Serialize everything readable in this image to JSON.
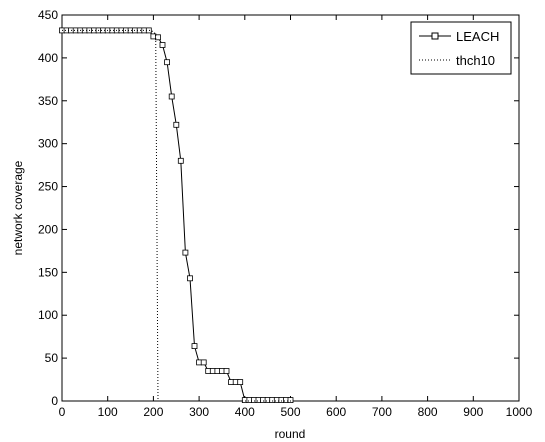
{
  "chart_data": {
    "type": "line",
    "title": "",
    "xlabel": "round",
    "ylabel": "network coverage",
    "xlim": [
      0,
      1000
    ],
    "ylim": [
      0,
      450
    ],
    "xticks": [
      0,
      100,
      200,
      300,
      400,
      500,
      600,
      700,
      800,
      900,
      1000
    ],
    "yticks": [
      0,
      50,
      100,
      150,
      200,
      250,
      300,
      350,
      400,
      450
    ],
    "grid": false,
    "legend": {
      "placement": "top-right",
      "entries": [
        "LEACH",
        "thch10"
      ]
    },
    "series": [
      {
        "name": "LEACH",
        "style": "solid",
        "marker": "square",
        "color": "#000000",
        "x": [
          0,
          10,
          20,
          30,
          40,
          50,
          60,
          70,
          80,
          90,
          100,
          110,
          120,
          130,
          140,
          150,
          160,
          170,
          180,
          190,
          200,
          210,
          220,
          230,
          240,
          250,
          260,
          270,
          280,
          290,
          300,
          310,
          320,
          330,
          340,
          350,
          360,
          370,
          380,
          390,
          400,
          410,
          420,
          430,
          440,
          450,
          460,
          470,
          480,
          490,
          500
        ],
        "y": [
          432,
          432,
          432,
          432,
          432,
          432,
          432,
          432,
          432,
          432,
          432,
          432,
          432,
          432,
          432,
          432,
          432,
          432,
          432,
          432,
          425,
          424,
          415,
          395,
          355,
          322,
          280,
          173,
          143,
          64,
          45,
          45,
          35,
          35,
          35,
          35,
          35,
          22,
          22,
          22,
          1,
          1,
          1,
          1,
          1,
          1,
          1,
          1,
          1,
          1,
          1
        ]
      },
      {
        "name": "thch10",
        "style": "dotted",
        "marker": "none",
        "color": "#000000",
        "x": [
          0,
          20,
          40,
          60,
          80,
          100,
          120,
          140,
          160,
          180,
          195,
          205,
          210,
          500,
          550,
          600,
          650,
          700,
          750,
          800,
          850,
          900,
          950,
          1000
        ],
        "y": [
          432,
          432,
          432,
          432,
          432,
          432,
          432,
          432,
          432,
          432,
          432,
          428,
          0,
          0,
          0,
          0,
          0,
          0,
          0,
          0,
          0,
          0,
          0,
          0
        ]
      }
    ]
  }
}
